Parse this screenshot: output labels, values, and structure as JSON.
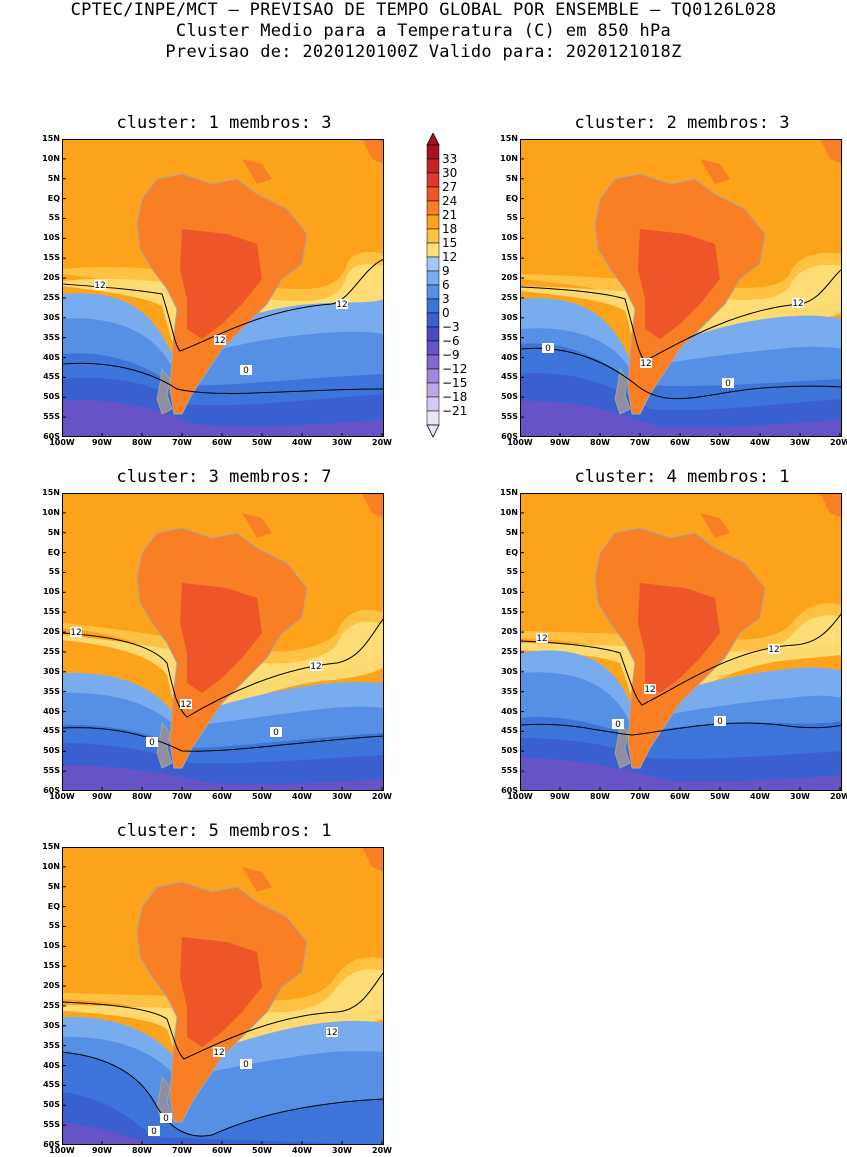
{
  "header": {
    "line1": "CPTEC/INPE/MCT – PREVISAO DE TEMPO GLOBAL POR ENSEMBLE – TQ0126L028",
    "line2": "Cluster Medio para a Temperatura (C) em 850 hPa",
    "line3": "Previsao de: 2020120100Z   Valido para: 2020121018Z"
  },
  "axes": {
    "lat_labels": [
      "15N",
      "10N",
      "5N",
      "EQ",
      "5S",
      "10S",
      "15S",
      "20S",
      "25S",
      "30S",
      "35S",
      "40S",
      "45S",
      "50S",
      "55S",
      "60S"
    ],
    "lon_labels": [
      "100W",
      "90W",
      "80W",
      "70W",
      "60W",
      "50W",
      "40W",
      "30W",
      "20W"
    ]
  },
  "colorbar": {
    "labels": [
      "33",
      "30",
      "27",
      "24",
      "21",
      "18",
      "15",
      "12",
      "9",
      "6",
      "3",
      "0",
      "−3",
      "−6",
      "−9",
      "−12",
      "−15",
      "−18",
      "−21"
    ],
    "colors": [
      "#a4131f",
      "#c4232b",
      "#db3a2c",
      "#ee5528",
      "#f87f24",
      "#fca31b",
      "#fec141",
      "#fde07a",
      "#a3c8f5",
      "#79acef",
      "#5590e5",
      "#3d74d9",
      "#3a5fcf",
      "#4b48c4",
      "#6653c6",
      "#8169cf",
      "#9e88d9",
      "#bba8e4",
      "#d6caf0",
      "#ece5f8"
    ],
    "arrow_top": "#a4131f",
    "arrow_bottom": "#ece5f8"
  },
  "panels": [
    {
      "title": "cluster: 1   membros: 3",
      "contour_labels": [
        "12",
        "12",
        "12",
        "0"
      ]
    },
    {
      "title": "cluster: 2   membros: 3",
      "contour_labels": [
        "12",
        "12",
        "0",
        "0"
      ]
    },
    {
      "title": "cluster: 3   membros: 7",
      "contour_labels": [
        "12",
        "12",
        "12",
        "0",
        "0"
      ]
    },
    {
      "title": "cluster: 4   membros: 1",
      "contour_labels": [
        "12",
        "12",
        "12",
        "0",
        "0"
      ]
    },
    {
      "title": "cluster: 5   membros: 1",
      "contour_labels": [
        "12",
        "12",
        "0",
        "0",
        "0"
      ]
    }
  ]
}
